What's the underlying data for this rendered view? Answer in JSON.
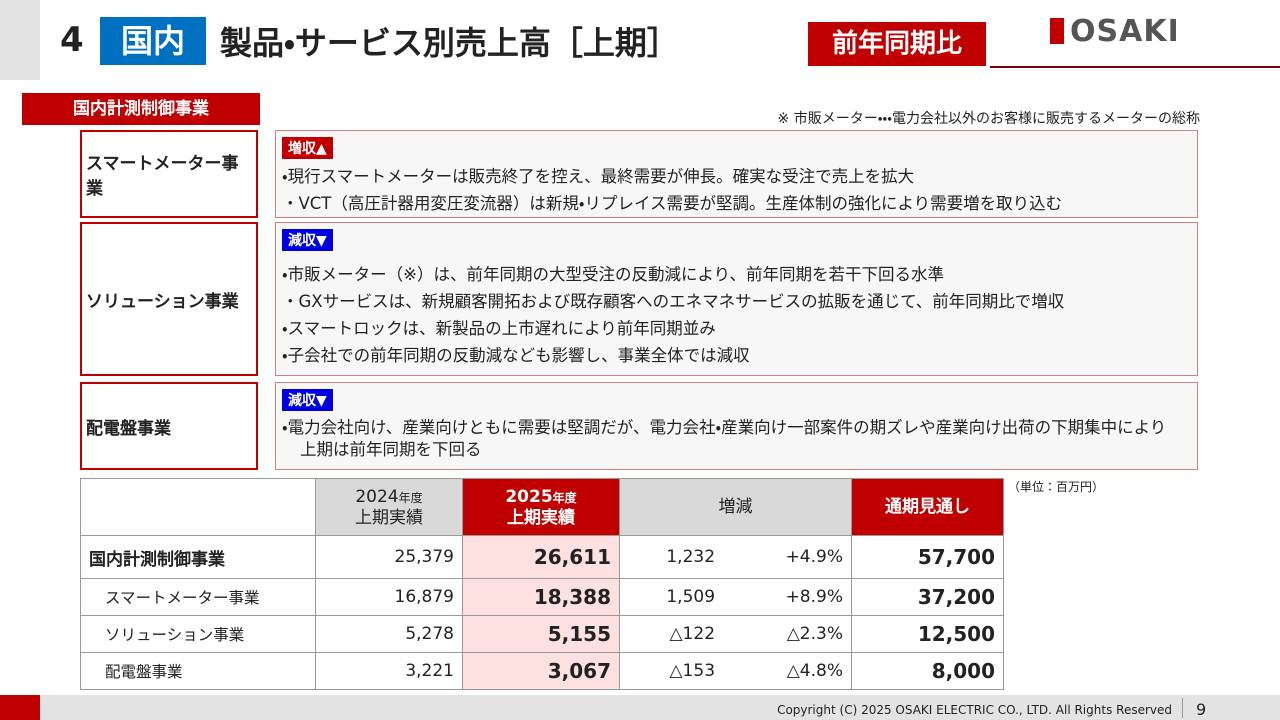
{
  "header": {
    "number": "4",
    "tag": "国内",
    "title": "製品・サービス別売上高［上期］",
    "badge": "前年同期比",
    "logo": "OSAKI"
  },
  "section": {
    "label": "国内計測制御事業",
    "note": "※ 市販メーター・・・電力会社以外のお客様に販売するメーターの総称"
  },
  "segments": [
    {
      "name": "スマートメーター事業",
      "trend": "増収▲",
      "points": [
        "現行スマートメーターは販売終了を控え、最終需要が伸長。確実な受注で売上を拡大",
        "VCT（高圧計器用変圧変流器）は新規・リプレイス需要が堅調。生産体制の強化により需要増を取り込む"
      ]
    },
    {
      "name": "ソリューション事業",
      "trend": "減収▼",
      "points": [
        "市販メーター（※）は、前年同期の大型受注の反動減により、前年同期を若干下回る水準",
        "GXサービスは、新規顧客開拓および既存顧客へのエネマネサービスの拡販を通じて、前年同期比で増収",
        "スマートロックは、新製品の上市遅れにより前年同期並み",
        "子会社での前年同期の反動減なども影響し、事業全体では減収"
      ]
    },
    {
      "name": "配電盤事業",
      "trend": "減収▼",
      "points": [
        "電力会社向け、産業向けともに需要は堅調だが、電力会社・産業向け一部案件の期ズレや産業向け出荷の下期集中により上期は前年同期を下回る"
      ]
    }
  ],
  "table": {
    "unit": "（単位：百万円）",
    "columns": [
      {
        "year": "2024",
        "suffix": "年度",
        "label": "上期実績"
      },
      {
        "year": "2025",
        "suffix": "年度",
        "label": "上期実績"
      },
      {
        "label": "増減"
      },
      {
        "label": "通期見通し"
      }
    ],
    "rows": [
      [
        "国内計測制御事業",
        "25,379",
        "26,611",
        "1,232",
        "+4.9%",
        "57,700"
      ],
      [
        "スマートメーター事業",
        "16,879",
        "18,388",
        "1,509",
        "+8.9%",
        "37,200"
      ],
      [
        "ソリューション事業",
        "5,278",
        "5,155",
        "△122",
        "△2.3%",
        "12,500"
      ],
      [
        "配電盤事業",
        "3,221",
        "3,067",
        "△153",
        "△4.8%",
        "8,000"
      ]
    ]
  },
  "footer": {
    "copyright": "Copyright (C) 2025 OSAKI ELECTRIC CO., LTD. All Rights Reserved",
    "page": "9"
  }
}
